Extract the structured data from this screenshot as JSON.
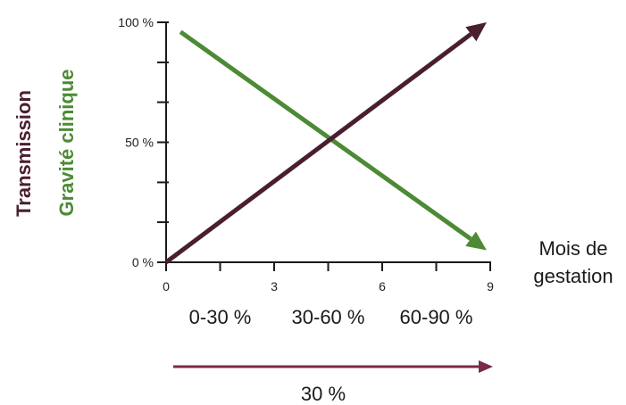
{
  "chart_data": {
    "type": "line",
    "title": "",
    "xlabel": "Mois de gestation",
    "xlabel_lines": [
      "Mois de",
      "gestation"
    ],
    "ylabel": "",
    "xlim": [
      0,
      9
    ],
    "ylim": [
      0,
      100
    ],
    "x_ticks": [
      0,
      3,
      6,
      9
    ],
    "x_tick_labels": [
      "0",
      "3",
      "6",
      "9"
    ],
    "y_tick_labels": [
      "100 %",
      "50 %",
      "0 %"
    ],
    "y_tick_values": [
      100,
      50,
      0
    ],
    "y_minor_tick_values": [
      0,
      16.7,
      33.3,
      50,
      66.7,
      83.3,
      100
    ],
    "series": [
      {
        "name": "Transmission",
        "color": "#4a1e30",
        "x": [
          0,
          8.9
        ],
        "y": [
          0,
          100
        ],
        "arrow": true
      },
      {
        "name": "Gravité clinique",
        "color": "#4d8a36",
        "x": [
          0.4,
          8.9
        ],
        "y": [
          96,
          5
        ],
        "arrow": true
      }
    ],
    "grid": false,
    "legend_placement": "left-vertical",
    "trimesters": [
      {
        "label": "0-30 %",
        "x": 1.5
      },
      {
        "label": "30-60 %",
        "x": 4.5
      },
      {
        "label": "60-90 %",
        "x": 7.5
      }
    ],
    "bottom_arrow_label": "30 %",
    "colors": {
      "transmission": "#4a1e30",
      "gravite": "#4d8a36",
      "bottom_arrow": "#7a2a4a",
      "bottom_label": "#a03040",
      "axis": "#1a1a1a"
    }
  }
}
